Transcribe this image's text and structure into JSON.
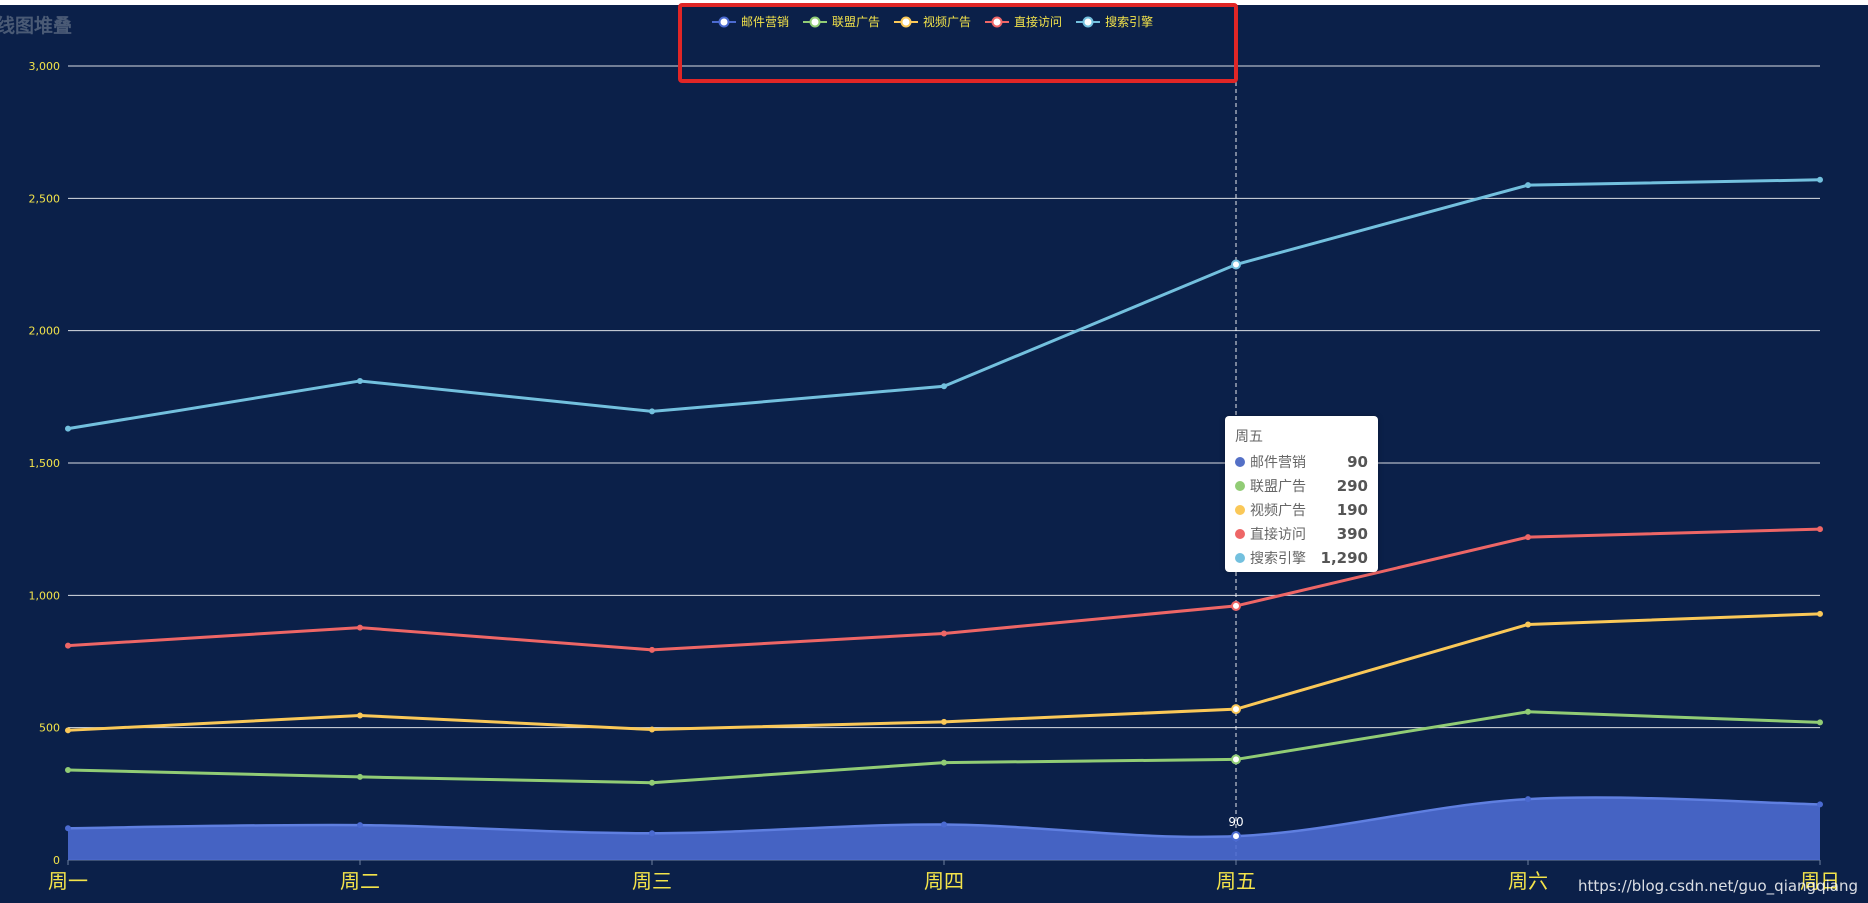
{
  "chart_data": {
    "type": "area",
    "title": "折线图堆叠",
    "title_visible": "线图堆叠",
    "categories": [
      "周一",
      "周二",
      "周三",
      "周四",
      "周五",
      "周六",
      "周日"
    ],
    "ylim": [
      0,
      3000
    ],
    "yticks": [
      0,
      500,
      1000,
      1500,
      2000,
      2500,
      3000
    ],
    "ytick_labels": [
      "0",
      "500",
      "1,000",
      "1,500",
      "2,000",
      "2,500",
      "3,000"
    ],
    "stacked": true,
    "grid": true,
    "legend_position": "top-center",
    "series": [
      {
        "name": "邮件营销",
        "values": [
          120,
          132,
          101,
          134,
          90,
          230,
          210
        ],
        "color": "#4b6ad0",
        "area": true,
        "smooth": true
      },
      {
        "name": "联盟广告",
        "values": [
          220,
          182,
          191,
          234,
          290,
          330,
          310
        ],
        "color": "#91cc75"
      },
      {
        "name": "视频广告",
        "values": [
          150,
          232,
          201,
          154,
          190,
          330,
          410
        ],
        "color": "#fac858"
      },
      {
        "name": "直接访问",
        "values": [
          320,
          332,
          301,
          334,
          390,
          330,
          320
        ],
        "color": "#ee6666"
      },
      {
        "name": "搜索引擎",
        "values": [
          820,
          932,
          901,
          934,
          1290,
          1330,
          1320
        ],
        "color": "#73c0de"
      }
    ],
    "axis_text_color": "#f3e34a",
    "grid_color": "#ffffff",
    "pointer_category": "周五",
    "data_label": {
      "category": "周五",
      "series": "邮件营销",
      "text": "90"
    }
  },
  "tooltip": {
    "title": "周五",
    "rows": [
      {
        "name": "邮件营销",
        "value": "90",
        "color": "#5470c6"
      },
      {
        "name": "联盟广告",
        "value": "290",
        "color": "#91cc75"
      },
      {
        "name": "视频广告",
        "value": "190",
        "color": "#fac858"
      },
      {
        "name": "直接访问",
        "value": "390",
        "color": "#ee6666"
      },
      {
        "name": "搜索引擎",
        "value": "1,290",
        "color": "#73c0de"
      }
    ]
  },
  "watermark": "https://blog.csdn.net/guo_qiangqiang",
  "annotation": {
    "color": "#e02626"
  }
}
